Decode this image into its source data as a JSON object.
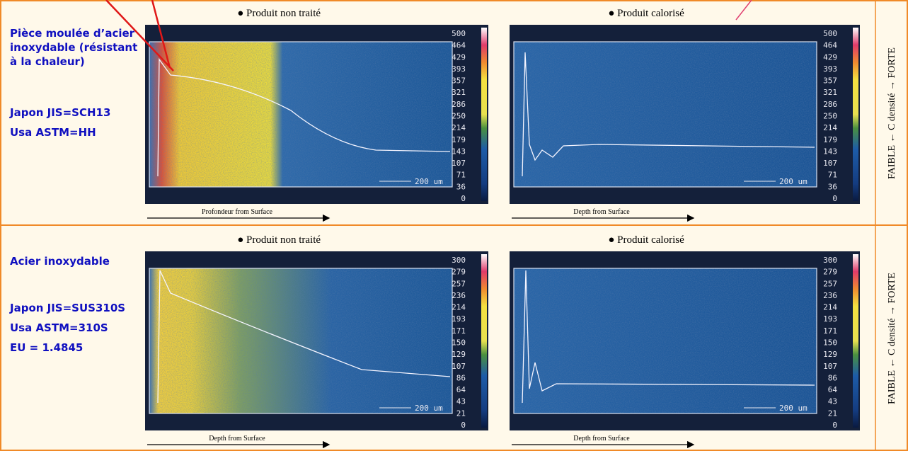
{
  "rows": [
    {
      "label_lines": [
        "Pièce moulée d’acier",
        "inoxydable (résistant",
        "à la chaleur)"
      ],
      "specs": [
        "Japon JIS=SCH13",
        "Usa ASTM=HH"
      ],
      "scale": [
        500,
        464,
        429,
        393,
        357,
        321,
        286,
        250,
        214,
        179,
        143,
        107,
        71,
        36,
        0
      ],
      "scale_bar": "200 um",
      "panels": [
        {
          "title": "● Produit non traité",
          "axis_label": "Profondeur from Surface"
        },
        {
          "title": "● Produit calorisé",
          "axis_label": "Depth from Surface"
        }
      ]
    },
    {
      "label_lines": [
        "Acier inoxydable"
      ],
      "specs": [
        "Japon JIS=SUS310S",
        "Usa ASTM=310S",
        "EU = 1.4845"
      ],
      "scale": [
        300,
        279,
        257,
        236,
        214,
        193,
        171,
        150,
        129,
        107,
        86,
        64,
        43,
        21,
        0
      ],
      "scale_bar": "200 um",
      "panels": [
        {
          "title": "● Produit non traité",
          "axis_label": "Depth from Surface"
        },
        {
          "title": "● Produit calorisé",
          "axis_label": "Depth from Surface"
        }
      ]
    }
  ],
  "side_label": "FAIBLE ← C  densité → FORTE"
}
